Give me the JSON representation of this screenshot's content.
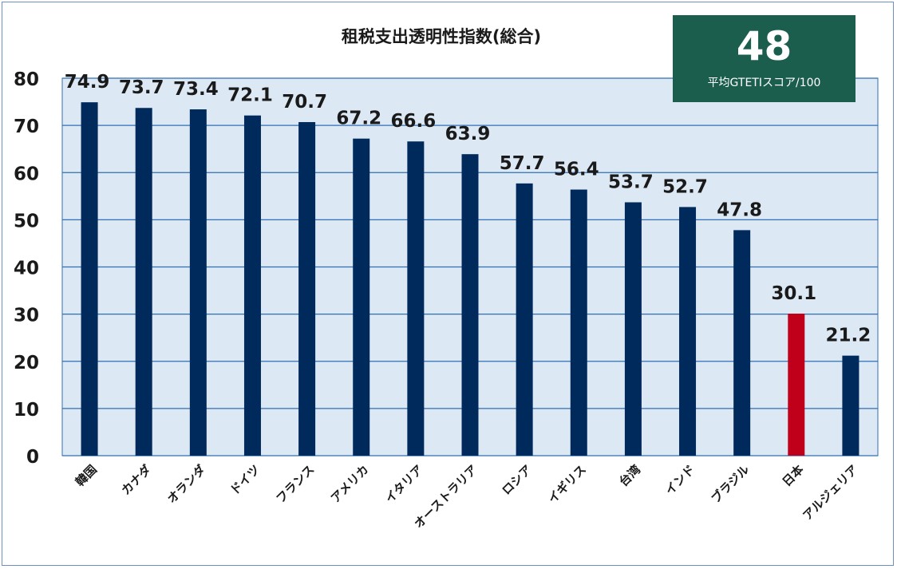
{
  "chart_data": {
    "type": "bar",
    "title": "租税支出透明性指数(総合)",
    "categories": [
      "韓国",
      "カナダ",
      "オランダ",
      "ドイツ",
      "フランス",
      "アメリカ",
      "イタリア",
      "オーストラリア",
      "ロシア",
      "イギリス",
      "台湾",
      "インド",
      "ブラジル",
      "日本",
      "アルジェリア"
    ],
    "values": [
      74.9,
      73.7,
      73.4,
      72.1,
      70.7,
      67.2,
      66.6,
      63.9,
      57.7,
      56.4,
      53.7,
      52.7,
      47.8,
      30.1,
      21.2
    ],
    "ylim": [
      0,
      80
    ],
    "yticks": [
      0,
      10,
      20,
      30,
      40,
      50,
      60,
      70,
      80
    ],
    "grid": true,
    "colors": {
      "bar": "#002a5c",
      "highlight": "#c0001a",
      "plot_background": "#dce9f5",
      "gridline": "#2f6fb5"
    },
    "highlight_category": "日本"
  },
  "score_box": {
    "value": "48",
    "label": "平均GTETIスコア/100",
    "color": "#1b5e4e"
  }
}
